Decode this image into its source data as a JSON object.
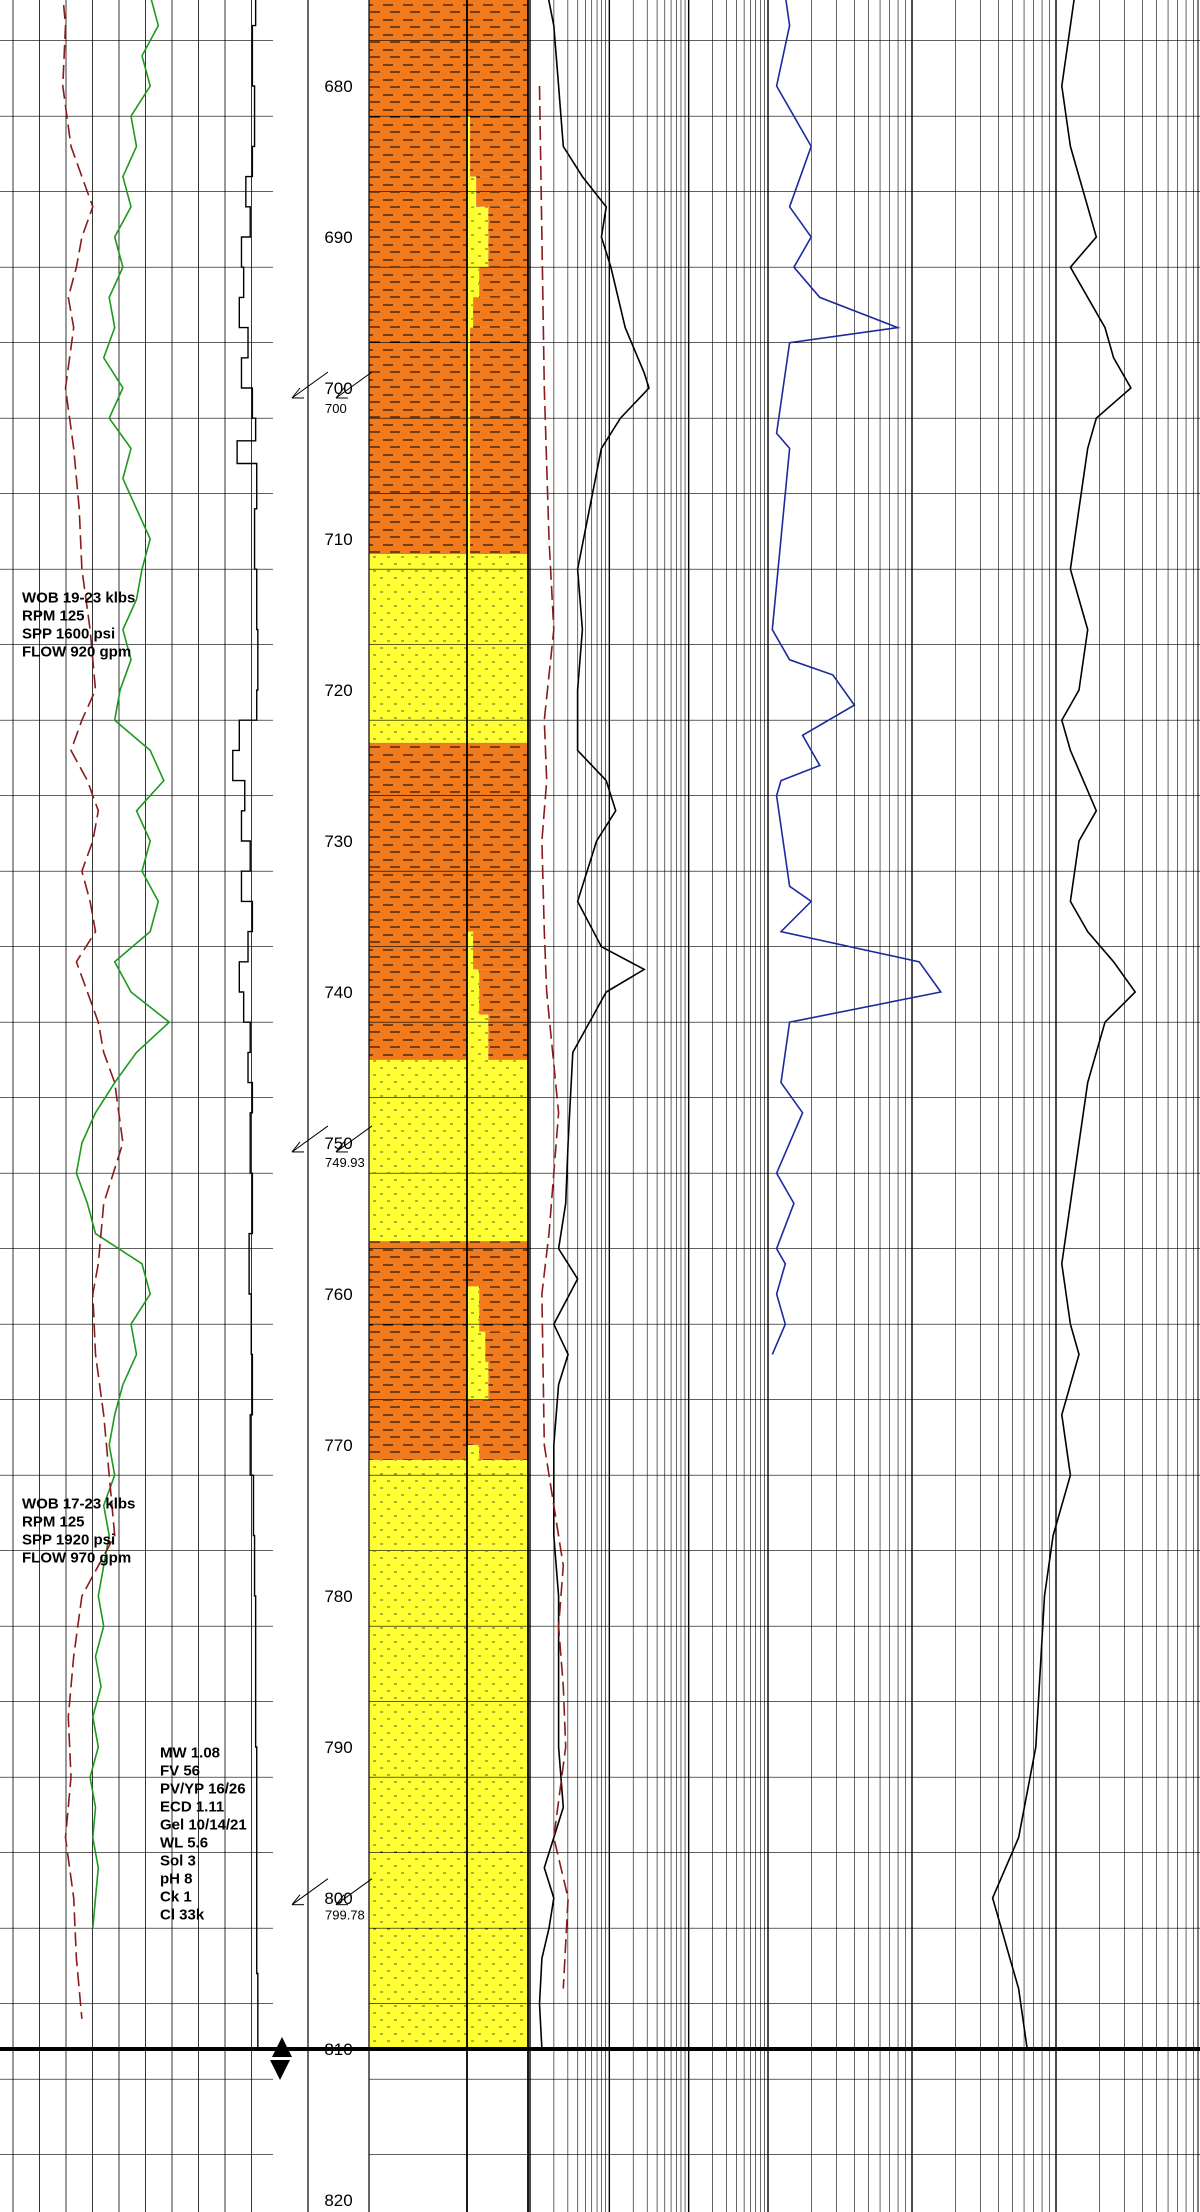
{
  "chart_data": {
    "type": "line",
    "title": "",
    "depth_axis": {
      "range": [
        672,
        820
      ],
      "major_ticks": [
        680,
        690,
        700,
        710,
        720,
        730,
        740,
        750,
        760,
        770,
        780,
        790,
        800,
        810,
        820
      ],
      "tick_labels": [
        "680",
        "690",
        "700",
        "710",
        "720",
        "730",
        "740",
        "750",
        "760",
        "770",
        "780",
        "790",
        "800",
        "810",
        "820"
      ],
      "grid": true
    },
    "depth_markers": [
      {
        "depth": 700,
        "label": "700"
      },
      {
        "depth": 749.93,
        "label": "749.93"
      },
      {
        "depth": 799.78,
        "label": "799.78"
      }
    ],
    "total_depth": 810,
    "colors": {
      "shale": "#f07a1c",
      "sand": "#ffff33",
      "rop_curve": "#000000",
      "gamma_curve": "#1d9a1d",
      "red_curve": "#8b1a1a",
      "blue_curve": "#1c2b9c",
      "grid": "#000000"
    },
    "lithology_interpretive": [
      {
        "top": 672,
        "base": 711,
        "rock": "shale"
      },
      {
        "top": 711,
        "base": 723.5,
        "rock": "sand"
      },
      {
        "top": 723.5,
        "base": 744.5,
        "rock": "shale"
      },
      {
        "top": 744.5,
        "base": 756.5,
        "rock": "sand"
      },
      {
        "top": 756.5,
        "base": 771,
        "rock": "shale"
      },
      {
        "top": 771,
        "base": 810,
        "rock": "sand"
      }
    ],
    "lithology_percent_sand": [
      {
        "top": 672,
        "base": 682,
        "sand": 0
      },
      {
        "top": 682,
        "base": 686,
        "sand": 5
      },
      {
        "top": 686,
        "base": 688,
        "sand": 15
      },
      {
        "top": 688,
        "base": 692,
        "sand": 35
      },
      {
        "top": 692,
        "base": 694,
        "sand": 20
      },
      {
        "top": 694,
        "base": 696,
        "sand": 10
      },
      {
        "top": 696,
        "base": 711,
        "sand": 5
      },
      {
        "top": 711,
        "base": 723.5,
        "sand": 100
      },
      {
        "top": 723.5,
        "base": 736,
        "sand": 0
      },
      {
        "top": 736,
        "base": 738.5,
        "sand": 10
      },
      {
        "top": 738.5,
        "base": 741.5,
        "sand": 20
      },
      {
        "top": 741.5,
        "base": 744.5,
        "sand": 35
      },
      {
        "top": 744.5,
        "base": 756.5,
        "sand": 100
      },
      {
        "top": 756.5,
        "base": 759.5,
        "sand": 0
      },
      {
        "top": 759.5,
        "base": 762.5,
        "sand": 20
      },
      {
        "top": 762.5,
        "base": 764.5,
        "sand": 30
      },
      {
        "top": 764.5,
        "base": 767,
        "sand": 35
      },
      {
        "top": 767,
        "base": 770,
        "sand": 0
      },
      {
        "top": 770,
        "base": 771,
        "sand": 20
      },
      {
        "top": 771,
        "base": 810,
        "sand": 100
      }
    ],
    "drilling_parameters": [
      {
        "depth": 714.2,
        "lines": [
          "WOB 19-23 klbs",
          "RPM 125",
          "SPP 1600 psi",
          "FLOW 920 gpm"
        ]
      },
      {
        "depth": 774.2,
        "lines": [
          "WOB 17-23 klbs",
          "RPM 125",
          "SPP 1920 psi",
          "FLOW 970 gpm"
        ]
      }
    ],
    "mud_properties": {
      "depth": 790.7,
      "lines": [
        "MW 1.08",
        "FV 56",
        "PV/YP 16/26",
        "ECD 1.11",
        "Gel 10/14/21",
        "WL 5.6",
        "Sol 3",
        "pH 8",
        "Ck 1",
        "Cl 33k"
      ]
    },
    "series": [
      {
        "key": "rop",
        "track": "rop",
        "color": "#000000",
        "depths": [
          672,
          676,
          680,
          684,
          686,
          688,
          690,
          692,
          694,
          696,
          698,
          700,
          702,
          703.5,
          705,
          708,
          712,
          716,
          720,
          722,
          724,
          726,
          728,
          730,
          732,
          734,
          736,
          738,
          740,
          742,
          744,
          746,
          748,
          752,
          756,
          760,
          764,
          768,
          772,
          776,
          780,
          790,
          800,
          805,
          810
        ],
        "values": [
          0.85,
          0.82,
          0.84,
          0.82,
          0.76,
          0.8,
          0.72,
          0.74,
          0.7,
          0.78,
          0.72,
          0.82,
          0.85,
          0.68,
          0.86,
          0.84,
          0.86,
          0.87,
          0.86,
          0.7,
          0.64,
          0.75,
          0.72,
          0.8,
          0.72,
          0.82,
          0.78,
          0.7,
          0.74,
          0.8,
          0.78,
          0.82,
          0.8,
          0.82,
          0.79,
          0.81,
          0.82,
          0.8,
          0.83,
          0.84,
          0.85,
          0.86,
          0.86,
          0.87,
          0.87
        ]
      },
      {
        "key": "gamma",
        "track": "log_left",
        "color": "#1d9a1d",
        "depths": [
          672,
          674,
          676,
          678,
          680,
          682,
          684,
          686,
          688,
          690,
          692,
          694,
          696,
          698,
          700,
          702,
          704,
          706,
          708,
          710,
          712,
          714,
          716,
          718,
          720,
          722,
          724,
          726,
          728,
          730,
          732,
          734,
          736,
          738,
          740,
          742,
          744,
          746,
          748,
          750,
          752,
          754,
          756,
          758,
          760,
          762,
          764,
          766,
          768,
          770,
          772,
          774,
          776,
          778,
          780,
          782,
          784,
          786,
          788,
          790,
          792,
          794,
          796,
          798,
          800,
          802
        ],
        "values": [
          0.6,
          0.55,
          0.58,
          0.52,
          0.55,
          0.48,
          0.5,
          0.45,
          0.48,
          0.42,
          0.45,
          0.4,
          0.42,
          0.38,
          0.45,
          0.4,
          0.48,
          0.45,
          0.5,
          0.55,
          0.52,
          0.5,
          0.45,
          0.48,
          0.44,
          0.42,
          0.55,
          0.6,
          0.5,
          0.55,
          0.52,
          0.58,
          0.55,
          0.42,
          0.48,
          0.62,
          0.5,
          0.42,
          0.35,
          0.3,
          0.28,
          0.32,
          0.35,
          0.52,
          0.55,
          0.48,
          0.5,
          0.45,
          0.42,
          0.4,
          0.42,
          0.38,
          0.4,
          0.38,
          0.36,
          0.38,
          0.35,
          0.37,
          0.34,
          0.36,
          0.33,
          0.35,
          0.34,
          0.36,
          0.35,
          0.34
        ]
      },
      {
        "key": "red-left",
        "track": "log_left",
        "color": "#8b1a1a",
        "depths": [
          672,
          676,
          680,
          684,
          686,
          688,
          690,
          692,
          694,
          696,
          700,
          704,
          708,
          712,
          716,
          720,
          722,
          724,
          726,
          728,
          730,
          732,
          734,
          736,
          738,
          740,
          742,
          744,
          746,
          750,
          754,
          758,
          760,
          764,
          768,
          772,
          776,
          780,
          784,
          788,
          792,
          796,
          800,
          804,
          808
        ],
        "values": [
          0.22,
          0.24,
          0.23,
          0.26,
          0.3,
          0.34,
          0.3,
          0.28,
          0.25,
          0.27,
          0.24,
          0.27,
          0.29,
          0.3,
          0.33,
          0.35,
          0.3,
          0.26,
          0.32,
          0.36,
          0.34,
          0.3,
          0.33,
          0.35,
          0.28,
          0.32,
          0.36,
          0.38,
          0.42,
          0.45,
          0.38,
          0.36,
          0.34,
          0.35,
          0.38,
          0.4,
          0.42,
          0.3,
          0.27,
          0.25,
          0.26,
          0.24,
          0.27,
          0.28,
          0.3
        ]
      },
      {
        "key": "resistivity-black",
        "track": "log_middle",
        "color": "#000000",
        "depths": [
          672,
          676,
          680,
          684,
          686,
          688,
          690,
          692,
          696,
          699,
          700,
          702,
          704,
          708,
          712,
          716,
          720,
          724,
          726,
          728,
          730,
          734,
          737,
          738.5,
          740,
          744,
          750,
          754,
          757,
          759,
          762,
          764,
          766,
          770,
          776,
          780,
          790,
          794,
          796,
          798,
          800,
          802,
          804,
          807,
          810
        ],
        "values": [
          0.05,
          0.1,
          0.12,
          0.14,
          0.22,
          0.32,
          0.3,
          0.34,
          0.4,
          0.48,
          0.5,
          0.38,
          0.3,
          0.25,
          0.2,
          0.22,
          0.2,
          0.2,
          0.32,
          0.36,
          0.28,
          0.2,
          0.3,
          0.48,
          0.32,
          0.18,
          0.16,
          0.15,
          0.12,
          0.2,
          0.1,
          0.16,
          0.12,
          0.1,
          0.1,
          0.12,
          0.12,
          0.14,
          0.1,
          0.06,
          0.1,
          0.08,
          0.05,
          0.04,
          0.05
        ]
      },
      {
        "key": "red-middle",
        "track": "log_middle",
        "color": "#8b1a1a",
        "depths": [
          680,
          690,
          700,
          710,
          716,
          722,
          726,
          730,
          736,
          740,
          748,
          752,
          756,
          760,
          770,
          774,
          778,
          782,
          786,
          790,
          796,
          800,
          806
        ],
        "values": [
          0.04,
          0.05,
          0.06,
          0.08,
          0.1,
          0.06,
          0.07,
          0.05,
          0.06,
          0.07,
          0.12,
          0.1,
          0.08,
          0.05,
          0.06,
          0.1,
          0.14,
          0.12,
          0.14,
          0.15,
          0.1,
          0.16,
          0.14
        ]
      },
      {
        "key": "blue-right",
        "track": "log_right",
        "color": "#1c2b9c",
        "depths": [
          672,
          676,
          680,
          682,
          684,
          688,
          690,
          692,
          694,
          696,
          697,
          703,
          704,
          716,
          718,
          719,
          721,
          723,
          725,
          726,
          727,
          733,
          734,
          736,
          738,
          740,
          742,
          746,
          748,
          752,
          754,
          757,
          758,
          760,
          762,
          764
        ],
        "values": [
          0.03,
          0.05,
          0.02,
          0.06,
          0.1,
          0.05,
          0.1,
          0.06,
          0.12,
          0.3,
          0.05,
          0.02,
          0.05,
          0.01,
          0.05,
          0.15,
          0.2,
          0.08,
          0.12,
          0.03,
          0.02,
          0.05,
          0.1,
          0.03,
          0.35,
          0.4,
          0.05,
          0.03,
          0.08,
          0.02,
          0.06,
          0.02,
          0.04,
          0.02,
          0.04,
          0.01
        ]
      },
      {
        "key": "black-right",
        "track": "log_right",
        "color": "#000000",
        "depths": [
          672,
          676,
          680,
          684,
          688,
          690,
          692,
          696,
          698,
          700,
          702,
          704,
          708,
          712,
          716,
          720,
          722,
          724,
          728,
          730,
          734,
          736,
          738,
          740,
          742,
          746,
          750,
          754,
          758,
          762,
          764,
          768,
          772,
          776,
          780,
          790,
          796,
          798,
          800,
          802,
          804,
          806,
          810
        ],
        "values": [
          0.72,
          0.7,
          0.68,
          0.7,
          0.74,
          0.76,
          0.7,
          0.78,
          0.8,
          0.84,
          0.76,
          0.74,
          0.72,
          0.7,
          0.74,
          0.72,
          0.68,
          0.7,
          0.76,
          0.72,
          0.7,
          0.74,
          0.8,
          0.85,
          0.78,
          0.74,
          0.72,
          0.7,
          0.68,
          0.7,
          0.72,
          0.68,
          0.7,
          0.66,
          0.64,
          0.62,
          0.58,
          0.55,
          0.52,
          0.54,
          0.56,
          0.58,
          0.6
        ]
      }
    ]
  }
}
